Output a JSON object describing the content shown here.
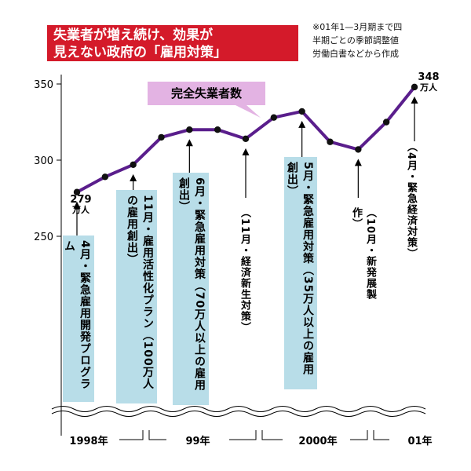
{
  "title": {
    "line1": "失業者が増え続け、効果が",
    "line2": "見えない政府の「雇用対策」"
  },
  "note": {
    "line1": "※01年1—3月期まで四",
    "line2": "半期ごとの季節調整値",
    "line3": "労働白書などから作成"
  },
  "colors": {
    "title_bg": "#d41a2a",
    "series_line": "#5a1e8c",
    "label_bg": "#e3b3e3",
    "box_bg": "#b8dde8"
  },
  "chart_data": {
    "type": "line",
    "series_name": "完全失業者数",
    "unit": "万人",
    "y_ticks": [
      "350",
      "300",
      "250"
    ],
    "ylim": [
      250,
      350
    ],
    "x_categories": [
      "1998年",
      "99年",
      "2000年",
      "01年"
    ],
    "points": [
      {
        "period": "1998-Q1",
        "value": 279
      },
      {
        "period": "1998-Q2",
        "value": 289
      },
      {
        "period": "1998-Q3",
        "value": 297
      },
      {
        "period": "1998-Q4",
        "value": 315
      },
      {
        "period": "1999-Q1",
        "value": 320
      },
      {
        "period": "1999-Q2",
        "value": 320
      },
      {
        "period": "1999-Q3",
        "value": 314
      },
      {
        "period": "1999-Q4",
        "value": 328
      },
      {
        "period": "2000-Q1",
        "value": 332
      },
      {
        "period": "2000-Q2",
        "value": 312
      },
      {
        "period": "2000-Q3",
        "value": 307
      },
      {
        "period": "2000-Q4",
        "value": 325
      },
      {
        "period": "2001-Q1",
        "value": 348
      }
    ],
    "start_label": {
      "value": "279",
      "unit": "万人"
    },
    "end_label": {
      "value": "348",
      "unit": "万人"
    },
    "annotations": [
      {
        "text": "4月・緊急雇用開発プログラム",
        "boxed": true,
        "point_index": 0
      },
      {
        "text": "11月・雇用活性化プラン（100万人の雇用創出）",
        "boxed": true,
        "point_index": 2
      },
      {
        "text": "6月・緊急雇用対策（70万人以上の雇用創出）",
        "boxed": true,
        "point_index": 4
      },
      {
        "text": "（11月・経済新生対策）",
        "boxed": false,
        "point_index": 6
      },
      {
        "text": "5月・緊急雇用対策（35万人以上の雇用創出）",
        "boxed": true,
        "point_index": 8
      },
      {
        "text": "（10月・新発展製作）",
        "boxed": false,
        "point_index": 10
      },
      {
        "text": "（4月・緊急経済対策）",
        "boxed": false,
        "point_index": 12
      }
    ]
  }
}
